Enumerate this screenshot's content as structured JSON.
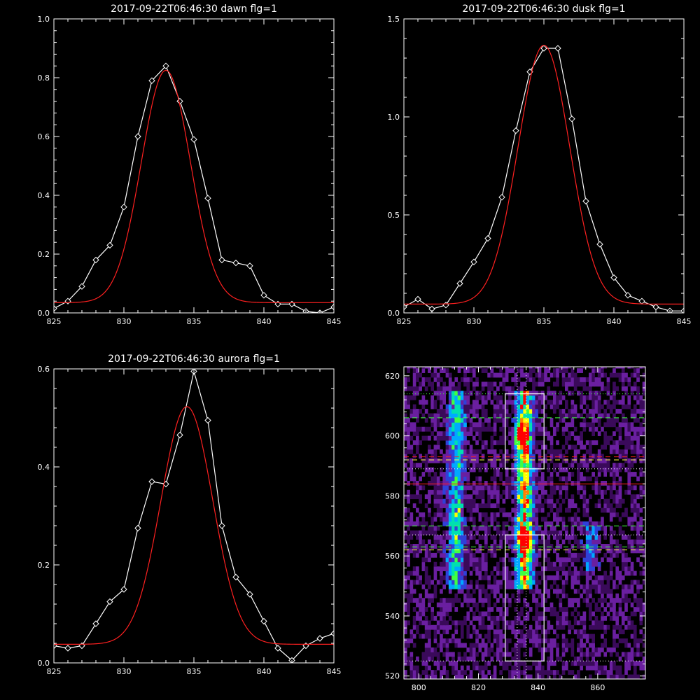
{
  "chart_data": [
    {
      "type": "line",
      "title": "2017-09-22T06:46:30 dawn flg=1",
      "xlim": [
        825,
        845
      ],
      "ylim": [
        0,
        1.0
      ],
      "xticks": [
        825,
        830,
        835,
        840,
        845
      ],
      "yticks": [
        0.0,
        0.2,
        0.4,
        0.6,
        0.8,
        1.0
      ],
      "ytick_labels": [
        "0.0",
        "0.2",
        "0.4",
        "0.6",
        "0.8",
        "1.0"
      ],
      "series": [
        {
          "color": "#ffffff",
          "marker": "diamond",
          "x": [
            825,
            826,
            827,
            828,
            829,
            830,
            831,
            832,
            833,
            834,
            835,
            836,
            837,
            838,
            839,
            840,
            841,
            842,
            843,
            844,
            845
          ],
          "y": [
            0.015,
            0.04,
            0.09,
            0.18,
            0.23,
            0.36,
            0.6,
            0.79,
            0.84,
            0.72,
            0.59,
            0.39,
            0.18,
            0.17,
            0.16,
            0.06,
            0.03,
            0.03,
            0.005,
            0.0,
            0.02
          ]
        },
        {
          "color": "#ff2020",
          "kind": "gaussian",
          "amp": 0.79,
          "center": 833.0,
          "sigma": 1.75,
          "offset": 0.035
        }
      ]
    },
    {
      "type": "line",
      "title": "2017-09-22T06:46:30 dusk flg=1",
      "xlim": [
        825,
        845
      ],
      "ylim": [
        0,
        1.5
      ],
      "xticks": [
        825,
        830,
        835,
        840,
        845
      ],
      "yticks": [
        0.0,
        0.5,
        1.0,
        1.5
      ],
      "ytick_labels": [
        "0.0",
        "0.5",
        "1.0",
        "1.5"
      ],
      "series": [
        {
          "color": "#ffffff",
          "marker": "diamond",
          "x": [
            825,
            826,
            827,
            828,
            829,
            830,
            831,
            832,
            833,
            834,
            835,
            836,
            837,
            838,
            839,
            840,
            841,
            842,
            843,
            844,
            845
          ],
          "y": [
            0.03,
            0.07,
            0.02,
            0.04,
            0.15,
            0.26,
            0.38,
            0.59,
            0.93,
            1.23,
            1.35,
            1.35,
            0.99,
            0.57,
            0.35,
            0.18,
            0.09,
            0.06,
            0.03,
            0.01,
            0.01
          ]
        },
        {
          "color": "#ff2020",
          "kind": "gaussian",
          "amp": 1.32,
          "center": 835.0,
          "sigma": 1.85,
          "offset": 0.045
        }
      ]
    },
    {
      "type": "line",
      "title": "2017-09-22T06:46:30 aurora flg=1",
      "xlim": [
        825,
        845
      ],
      "ylim": [
        0,
        0.6
      ],
      "xticks": [
        825,
        830,
        835,
        840,
        845
      ],
      "yticks": [
        0.0,
        0.2,
        0.4,
        0.6
      ],
      "ytick_labels": [
        "0.0",
        "0.2",
        "0.4",
        "0.6"
      ],
      "series": [
        {
          "color": "#ffffff",
          "marker": "diamond",
          "x": [
            825,
            826,
            827,
            828,
            829,
            830,
            831,
            832,
            833,
            834,
            835,
            836,
            837,
            838,
            839,
            840,
            841,
            842,
            843,
            844,
            845
          ],
          "y": [
            0.035,
            0.03,
            0.035,
            0.08,
            0.125,
            0.15,
            0.275,
            0.37,
            0.365,
            0.465,
            0.595,
            0.495,
            0.28,
            0.175,
            0.14,
            0.085,
            0.03,
            0.005,
            0.035,
            0.05,
            0.06
          ]
        },
        {
          "color": "#ff2020",
          "kind": "gaussian",
          "amp": 0.485,
          "center": 834.5,
          "sigma": 1.85,
          "offset": 0.038
        }
      ]
    },
    {
      "type": "heatmap",
      "title": "",
      "xlim": [
        795,
        876
      ],
      "ylim": [
        519,
        623
      ],
      "xticks": [
        800,
        820,
        840,
        860
      ],
      "yticks": [
        520,
        540,
        560,
        580,
        600,
        620
      ],
      "colormap": [
        "#000000",
        "#3a0a5a",
        "#6a1fa0",
        "#3040d8",
        "#00a8ff",
        "#00e0b0",
        "#40ff40",
        "#ffff00",
        "#ff8000",
        "#ff0000"
      ],
      "ridges": [
        {
          "x": 812,
          "y_range": [
            548,
            614
          ],
          "strength": 0.55
        },
        {
          "x": 835,
          "y_range": [
            548,
            614
          ],
          "strength": 0.9
        },
        {
          "x": 857,
          "y_range": [
            555,
            570
          ],
          "strength": 0.3
        }
      ],
      "hotspots": [
        {
          "x": 835,
          "y": 565,
          "strength": 1.0
        },
        {
          "x": 834,
          "y": 599,
          "strength": 0.85
        }
      ],
      "boxes": [
        {
          "x0": 829,
          "x1": 842,
          "y0": 589,
          "y1": 614
        },
        {
          "x0": 829,
          "x1": 842,
          "y0": 525,
          "y1": 567
        }
      ],
      "hlines": [
        {
          "y": 614,
          "color": "#40ff40",
          "style": "dotted"
        },
        {
          "y": 606,
          "color": "#40ff40",
          "style": "dashed"
        },
        {
          "y": 593,
          "color": "#ff2020",
          "style": "dashed"
        },
        {
          "y": 592,
          "color": "#ffff40",
          "style": "dashed"
        },
        {
          "y": 589,
          "color": "#ffffff",
          "style": "dotted"
        },
        {
          "y": 584,
          "color": "#ff2020",
          "style": "solid"
        },
        {
          "y": 570,
          "color": "#40ff40",
          "style": "dashed"
        },
        {
          "y": 567,
          "color": "#ffffff",
          "style": "dotted"
        },
        {
          "y": 563,
          "color": "#40ff40",
          "style": "dashed"
        },
        {
          "y": 562,
          "color": "#ffff40",
          "style": "dashed"
        },
        {
          "y": 525,
          "color": "#ffffff",
          "style": "dotted"
        }
      ],
      "vlines": [
        {
          "x": 833,
          "color": "#ffffff",
          "style": "dotted"
        },
        {
          "x": 836,
          "color": "#ffffff",
          "style": "dotted"
        }
      ]
    }
  ]
}
